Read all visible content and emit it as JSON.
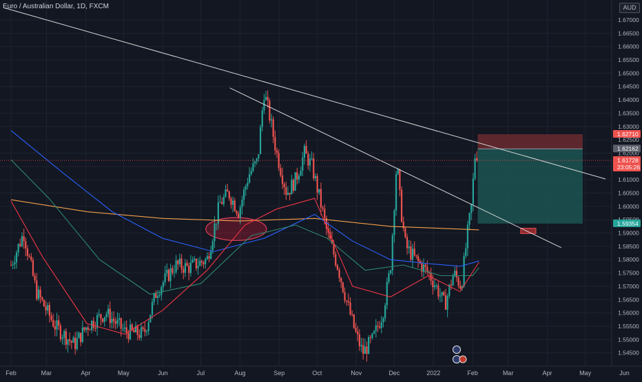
{
  "symbol": {
    "title": "Euro / Australian Dollar, 1D, FXCM",
    "currency": "AUD"
  },
  "colors": {
    "background": "#131722",
    "up": "#26a69a",
    "down": "#ef5350",
    "ma_blue": "#2962ff",
    "ma_orange": "#f5a04b",
    "ma_red": "#f23645",
    "ma_green": "#2e8b6f",
    "trendline": "#d8d8d8",
    "target_zone": "#1d5c58",
    "stop_zone": "#6b2a30"
  },
  "chart_data": {
    "type": "candlestick",
    "y_axis": {
      "range": [
        1.54,
        1.6775
      ],
      "ticks": [
        "1.67000",
        "1.66500",
        "1.66000",
        "1.65500",
        "1.65000",
        "1.64500",
        "1.64000",
        "1.63500",
        "1.63000",
        "1.62500",
        "1.62000",
        "1.61500",
        "1.61000",
        "1.60500",
        "1.60000",
        "1.59500",
        "1.59000",
        "1.58500",
        "1.58000",
        "1.57500",
        "1.57000",
        "1.56500",
        "1.56000",
        "1.55500",
        "1.55000",
        "1.54500"
      ]
    },
    "x_axis": {
      "range_days": [
        0,
        500
      ],
      "labels": [
        {
          "text": "Feb",
          "day": 0
        },
        {
          "text": "Mar",
          "day": 28
        },
        {
          "text": "Apr",
          "day": 59
        },
        {
          "text": "May",
          "day": 89
        },
        {
          "text": "Jun",
          "day": 120
        },
        {
          "text": "Jul",
          "day": 150
        },
        {
          "text": "Aug",
          "day": 181
        },
        {
          "text": "Sep",
          "day": 212
        },
        {
          "text": "Oct",
          "day": 242
        },
        {
          "text": "Nov",
          "day": 273
        },
        {
          "text": "Dec",
          "day": 303
        },
        {
          "text": "2022",
          "day": 334
        },
        {
          "text": "Feb",
          "day": 365
        },
        {
          "text": "Mar",
          "day": 393
        },
        {
          "text": "Apr",
          "day": 424
        },
        {
          "text": "May",
          "day": 454
        },
        {
          "text": "Jun",
          "day": 485
        }
      ]
    },
    "price_path": [
      [
        0,
        1.578
      ],
      [
        10,
        1.59
      ],
      [
        20,
        1.568
      ],
      [
        35,
        1.555
      ],
      [
        50,
        1.548
      ],
      [
        60,
        1.555
      ],
      [
        75,
        1.56
      ],
      [
        90,
        1.553
      ],
      [
        105,
        1.552
      ],
      [
        115,
        1.568
      ],
      [
        130,
        1.578
      ],
      [
        140,
        1.577
      ],
      [
        155,
        1.58
      ],
      [
        165,
        1.601
      ],
      [
        172,
        1.605
      ],
      [
        180,
        1.598
      ],
      [
        188,
        1.612
      ],
      [
        195,
        1.617
      ],
      [
        200,
        1.643
      ],
      [
        204,
        1.635
      ],
      [
        210,
        1.62
      ],
      [
        218,
        1.605
      ],
      [
        225,
        1.61
      ],
      [
        232,
        1.62
      ],
      [
        238,
        1.615
      ],
      [
        244,
        1.603
      ],
      [
        250,
        1.59
      ],
      [
        258,
        1.578
      ],
      [
        265,
        1.565
      ],
      [
        272,
        1.553
      ],
      [
        278,
        1.545
      ],
      [
        286,
        1.55
      ],
      [
        294,
        1.56
      ],
      [
        300,
        1.577
      ],
      [
        305,
        1.617
      ],
      [
        308,
        1.6
      ],
      [
        312,
        1.585
      ],
      [
        320,
        1.58
      ],
      [
        330,
        1.575
      ],
      [
        336,
        1.57
      ],
      [
        343,
        1.563
      ],
      [
        350,
        1.575
      ],
      [
        356,
        1.57
      ],
      [
        361,
        1.59
      ],
      [
        364,
        1.6
      ],
      [
        367,
        1.62
      ],
      [
        369,
        1.6173
      ]
    ],
    "moving_averages": [
      {
        "color_key": "ma_orange",
        "points": [
          [
            0,
            1.6025
          ],
          [
            60,
            1.598
          ],
          [
            120,
            1.5955
          ],
          [
            180,
            1.5945
          ],
          [
            240,
            1.5955
          ],
          [
            300,
            1.5925
          ],
          [
            370,
            1.5912
          ]
        ]
      },
      {
        "color_key": "ma_blue",
        "points": [
          [
            0,
            1.6285
          ],
          [
            40,
            1.613
          ],
          [
            80,
            1.598
          ],
          [
            120,
            1.588
          ],
          [
            160,
            1.583
          ],
          [
            200,
            1.588
          ],
          [
            240,
            1.597
          ],
          [
            270,
            1.587
          ],
          [
            300,
            1.58
          ],
          [
            330,
            1.5785
          ],
          [
            355,
            1.5775
          ],
          [
            370,
            1.5795
          ]
        ]
      },
      {
        "color_key": "ma_green",
        "points": [
          [
            0,
            1.6175
          ],
          [
            30,
            1.603
          ],
          [
            70,
            1.58
          ],
          [
            110,
            1.567
          ],
          [
            150,
            1.571
          ],
          [
            190,
            1.589
          ],
          [
            225,
            1.593
          ],
          [
            250,
            1.588
          ],
          [
            280,
            1.576
          ],
          [
            310,
            1.578
          ],
          [
            340,
            1.574
          ],
          [
            365,
            1.574
          ],
          [
            370,
            1.577
          ]
        ]
      },
      {
        "color_key": "ma_red",
        "points": [
          [
            0,
            1.602
          ],
          [
            25,
            1.581
          ],
          [
            60,
            1.556
          ],
          [
            90,
            1.552
          ],
          [
            120,
            1.561
          ],
          [
            155,
            1.576
          ],
          [
            185,
            1.593
          ],
          [
            210,
            1.599
          ],
          [
            240,
            1.603
          ],
          [
            270,
            1.57
          ],
          [
            300,
            1.566
          ],
          [
            330,
            1.574
          ],
          [
            355,
            1.568
          ],
          [
            370,
            1.579
          ]
        ]
      }
    ],
    "trendlines": [
      {
        "from": [
          -5,
          1.6745
        ],
        "to": [
          470,
          1.6103
        ]
      },
      {
        "from": [
          173,
          1.6445
        ],
        "to": [
          435,
          1.5845
        ]
      }
    ],
    "highlight_ellipse": {
      "center": [
        178,
        1.5915
      ],
      "radius_days": 24,
      "radius_price": 0.0043
    },
    "position": {
      "entry": 1.62162,
      "stop": 1.6271,
      "target": 1.59354,
      "from_day": 369,
      "to_day": 452
    },
    "small_marker": {
      "from_day": 403,
      "to_day": 415,
      "top": 1.5918,
      "bottom": 1.5898
    },
    "price_labels": [
      {
        "text": "1.62710",
        "value": 1.6271,
        "bg_key": "down"
      },
      {
        "text": "1.62162",
        "value": 1.62162,
        "bg": "#5d606b"
      },
      {
        "text": "1.61728",
        "sub": "23:05:26",
        "value": 1.61728,
        "bg_key": "down"
      },
      {
        "text": "1.59354",
        "value": 1.59354,
        "bg_key": "up"
      }
    ],
    "current_price": 1.61728
  }
}
